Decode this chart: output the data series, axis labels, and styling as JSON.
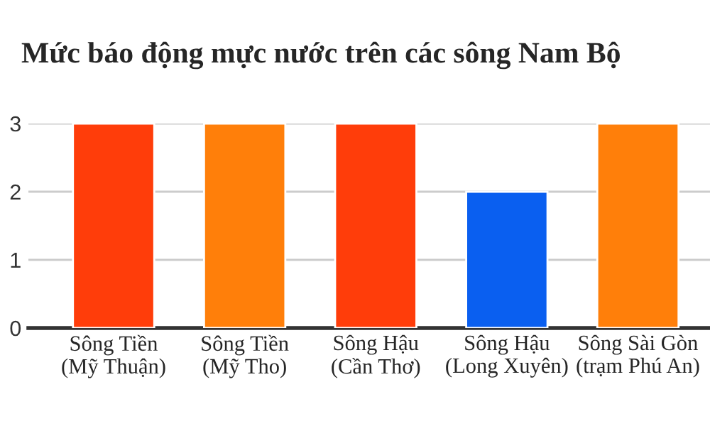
{
  "chart_data": {
    "type": "bar",
    "title": "Mức báo động mực nước trên các sông Nam Bộ",
    "categories": [
      "Sông Tiền\n(Mỹ Thuận)",
      "Sông Tiền\n(Mỹ Tho)",
      "Sông Hậu\n(Cần Thơ)",
      "Sông Hậu\n(Long Xuyên)",
      "Sông Sài Gòn\n(trạm Phú An)"
    ],
    "values": [
      3,
      3,
      3,
      2,
      3
    ],
    "colors": [
      "#ff3d0a",
      "#ff7f0a",
      "#ff3d0a",
      "#0a5ff0",
      "#ff7f0a"
    ],
    "ylim": [
      0,
      3
    ],
    "yticks": [
      0,
      1,
      2,
      3
    ],
    "grid": "y"
  }
}
